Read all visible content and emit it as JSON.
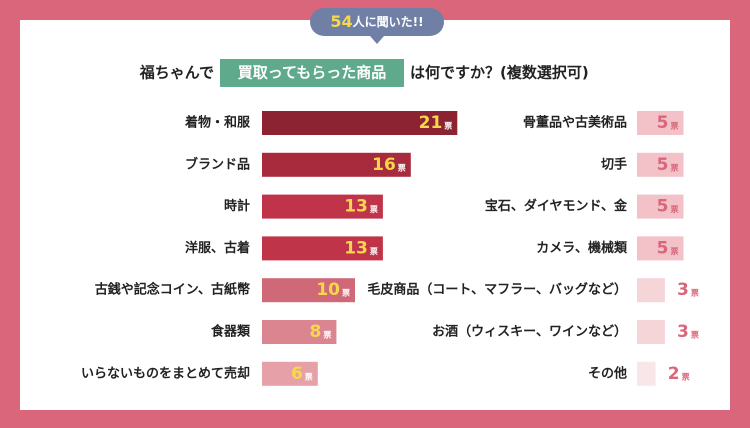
{
  "badge": {
    "number": 54,
    "text": "人に聞いた!!"
  },
  "chart_data": {
    "type": "bar",
    "title_pre": "福ちゃんで",
    "title_highlight": "買取ってもらった商品",
    "title_post": "は何ですか？(複数選択可)",
    "unit": "票",
    "categories": [
      "着物・和服",
      "ブランド品",
      "時計",
      "洋服、古着",
      "古銭や記念コイン、古紙幣",
      "食器類",
      "いらないものをまとめて売却",
      "骨董品や古美術品",
      "切手",
      "宝石、ダイヤモンド、金",
      "カメラ、機械類",
      "毛皮商品（コート、マフラー、バッグなど）",
      "お酒（ウィスキー、ワインなど）",
      "その他"
    ],
    "values": [
      21,
      16,
      13,
      13,
      10,
      8,
      6,
      5,
      5,
      5,
      5,
      3,
      3,
      2
    ],
    "colors": [
      "#8c2333",
      "#a82b3d",
      "#c0344a",
      "#c0344a",
      "#cf6877",
      "#db8591",
      "#e5a0a8",
      "#f2c2c8",
      "#f2c2c8",
      "#f2c2c8",
      "#f2c2c8",
      "#f6d5d9",
      "#f6d5d9",
      "#f9e6e8"
    ]
  }
}
